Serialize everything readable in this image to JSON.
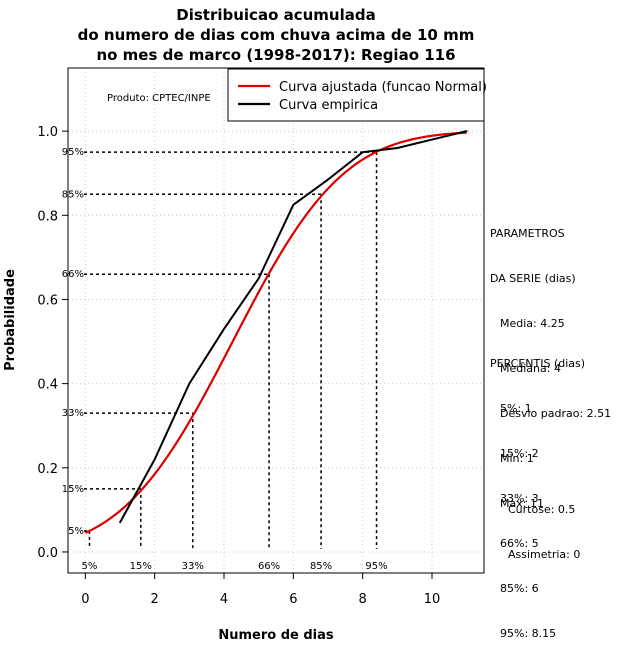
{
  "chart_data": {
    "type": "line",
    "title_lines": [
      "Distribuicao acumulada",
      "do numero de dias com chuva acima de 10 mm",
      "no mes de marco (1998-2017): Regiao 116"
    ],
    "xlabel": "Numero de dias",
    "ylabel": "Probabilidade",
    "xlim": [
      -0.5,
      11.5
    ],
    "ylim": [
      -0.05,
      1.15
    ],
    "x_ticks": [
      0,
      2,
      4,
      6,
      8,
      10
    ],
    "y_ticks": [
      0.0,
      0.2,
      0.4,
      0.6,
      0.8,
      1.0
    ],
    "x_tick_labels": [
      "0",
      "2",
      "4",
      "6",
      "8",
      "10"
    ],
    "y_tick_labels": [
      "0.0",
      "0.2",
      "0.4",
      "0.6",
      "0.8",
      "1.0"
    ],
    "grid": true,
    "series": [
      {
        "name": "Curva ajustada (funcao Normal)",
        "color": "#dd0000",
        "kind": "normal_cdf",
        "mean": 4.25,
        "sd": 2.51,
        "x_range": [
          0,
          11
        ]
      },
      {
        "name": "Curva empirica",
        "color": "#000000",
        "kind": "points",
        "x": [
          1,
          2,
          3,
          4,
          5,
          6,
          7,
          8,
          9,
          10,
          11
        ],
        "y": [
          0.07,
          0.22,
          0.4,
          0.53,
          0.65,
          0.825,
          0.885,
          0.95,
          0.96,
          0.98,
          1.0
        ]
      }
    ],
    "percentile_markers": [
      {
        "label": "5%",
        "x": 0.12,
        "y": 0.05
      },
      {
        "label": "15%",
        "x": 1.6,
        "y": 0.15
      },
      {
        "label": "33%",
        "x": 3.1,
        "y": 0.33
      },
      {
        "label": "66%",
        "x": 5.3,
        "y": 0.66
      },
      {
        "label": "85%",
        "x": 6.8,
        "y": 0.85
      },
      {
        "label": "95%",
        "x": 8.4,
        "y": 0.95
      }
    ],
    "legend_position": "top-right",
    "annotation": "Produto: CPTEC/INPE"
  },
  "panel": {
    "params_title_1": "PARAMETROS",
    "params_title_2": "DA SERIE (dias)",
    "media": "Media: 4.25",
    "mediana": "Mediana: 4",
    "desvio": "Desvio padrao: 2.51",
    "min": "Min: 1",
    "max": "Max: 11",
    "percentis_title": "PERCENTIS (dias)",
    "p5": "5%: 1",
    "p15": "15%: 2",
    "p33": "33%: 3",
    "p66": "66%: 5",
    "p85": "85%: 6",
    "p95": "95%: 8.15",
    "curtose": "Curtose: 0.5",
    "assimetria": "Assimetria: 0"
  }
}
